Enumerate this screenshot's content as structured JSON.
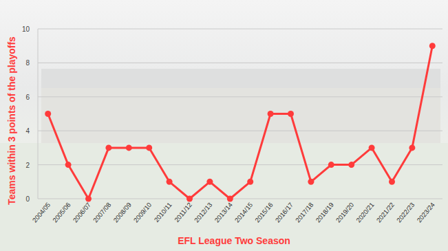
{
  "chart_data": {
    "type": "line",
    "x_label": "EFL League Two Season",
    "y_label": "Teams within 3 points of the playoffs",
    "categories": [
      "2004/05",
      "2005/06",
      "2006/07",
      "2007/08",
      "2008/09",
      "2009/10",
      "2010/11",
      "2011/12",
      "2012/13",
      "2013/14",
      "2014/15",
      "2015/16",
      "2016/17",
      "2017/18",
      "2018/19",
      "2019/20",
      "2020/21",
      "2021/22",
      "2022/23",
      "2023/24"
    ],
    "values": [
      5,
      2,
      0,
      3,
      3,
      3,
      1,
      0,
      1,
      0,
      1,
      5,
      5,
      1,
      2,
      2,
      3,
      1,
      3,
      9
    ],
    "color": "#ff3b3b",
    "marker": "circle",
    "ylim": [
      0,
      10
    ],
    "yticks": [
      0,
      2,
      4,
      6,
      8,
      10
    ],
    "grid": true
  }
}
